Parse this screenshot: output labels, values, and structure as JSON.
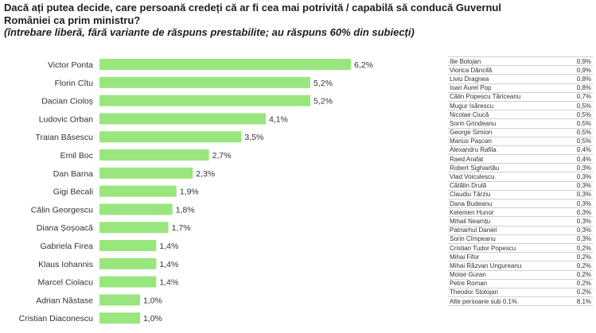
{
  "title_line1": "Dacă ați putea decide, care persoană credeți că ar fi cea mai potrivită / capabilă să conducă Guvernul",
  "title_line2": "României ca prim ministru?",
  "title_line3": "(întrebare liberă, fără variante de răspuns prestabilite; au răspuns 60% din subiecți)",
  "colors": {
    "bar": "#99e67e",
    "text": "#333333"
  },
  "chart_data": {
    "type": "bar",
    "orientation": "horizontal",
    "categories": [
      "Victor Ponta",
      "Florin Cîtu",
      "Dacian Cioloș",
      "Ludovic Orban",
      "Traian Băsescu",
      "Emil Boc",
      "Dan Barna",
      "Gigi Becali",
      "Călin Georgescu",
      "Diana Șoșoacă",
      "Gabriela Firea",
      "Klaus Iohannis",
      "Marcel Ciolacu",
      "Adrian Năstase",
      "Cristian Diaconescu"
    ],
    "values": [
      6.2,
      5.2,
      5.2,
      4.1,
      3.5,
      2.7,
      2.3,
      1.9,
      1.8,
      1.7,
      1.4,
      1.4,
      1.4,
      1.0,
      1.0
    ],
    "labels": [
      "6,2%",
      "5,2%",
      "5,2%",
      "4,1%",
      "3,5%",
      "2,7%",
      "2,3%",
      "1,9%",
      "1,8%",
      "1,7%",
      "1,4%",
      "1,4%",
      "1,4%",
      "1,0%",
      "1,0%"
    ],
    "xlim": [
      0,
      6.2
    ],
    "grid": false,
    "legend": "none"
  },
  "side_table": [
    {
      "name": "Ilie Bolojan",
      "value": "0,9%"
    },
    {
      "name": "Viorica Dăncilă",
      "value": "0,9%"
    },
    {
      "name": "Liviu Dragnea",
      "value": "0,8%"
    },
    {
      "name": "Ioan Aurel Pop",
      "value": "0,8%"
    },
    {
      "name": "Călin Popescu Tăriceanu",
      "value": "0,7%"
    },
    {
      "name": "Mugur Isărescu",
      "value": "0,5%"
    },
    {
      "name": "Nicolae Ciucă",
      "value": "0,5%"
    },
    {
      "name": "Sorin Grindeanu",
      "value": "0,5%"
    },
    {
      "name": "George Simion",
      "value": "0,5%"
    },
    {
      "name": "Marius Pașcan",
      "value": "0,5%"
    },
    {
      "name": "Alexandru Rafila",
      "value": "0,4%"
    },
    {
      "name": "Raed Arafat",
      "value": "0,4%"
    },
    {
      "name": "Robert Sighiartău",
      "value": "0,3%"
    },
    {
      "name": "Vlad Voiculescu",
      "value": "0,3%"
    },
    {
      "name": "Cătălin Drulă",
      "value": "0,3%"
    },
    {
      "name": "Claudiu Tărziu",
      "value": "0,3%"
    },
    {
      "name": "Dana Budeanu",
      "value": "0,3%"
    },
    {
      "name": "Kelemen Hunor",
      "value": "0,3%"
    },
    {
      "name": "Mihail Neamțu",
      "value": "0,3%"
    },
    {
      "name": "Patriarhul Daniel",
      "value": "0,3%"
    },
    {
      "name": "Sorin Cîmpeanu",
      "value": "0,3%"
    },
    {
      "name": "Cristian Tudor Popescu",
      "value": "0,2%"
    },
    {
      "name": "Mihai Fifor",
      "value": "0,2%"
    },
    {
      "name": "Mihai Răzvan Ungureanu",
      "value": "0,2%"
    },
    {
      "name": "Moise Guran",
      "value": "0,2%"
    },
    {
      "name": "Petre Roman",
      "value": "0,2%"
    },
    {
      "name": "Theodor Stolojan",
      "value": "0,2%"
    },
    {
      "name": "Alte persoane sub 0,1%",
      "value": "8,1%"
    }
  ]
}
